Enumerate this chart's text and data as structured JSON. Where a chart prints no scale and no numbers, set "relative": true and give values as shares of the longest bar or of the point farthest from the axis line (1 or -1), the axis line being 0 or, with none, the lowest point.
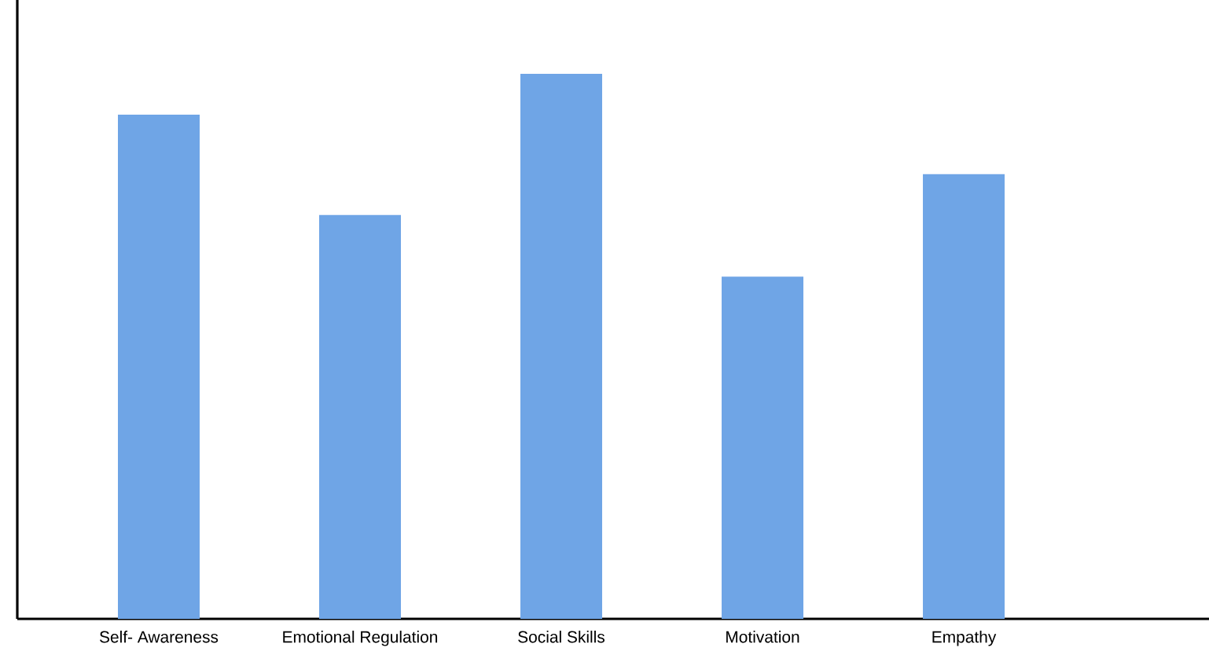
{
  "chart_data": {
    "type": "bar",
    "relative": true,
    "color": "#6fa5e6",
    "categories": [
      "Self- Awareness",
      "Emotional Regulation",
      "Social Skills",
      "Motivation",
      "Empathy"
    ],
    "values": [
      0.925,
      0.741,
      1,
      0.628,
      0.816
    ]
  }
}
